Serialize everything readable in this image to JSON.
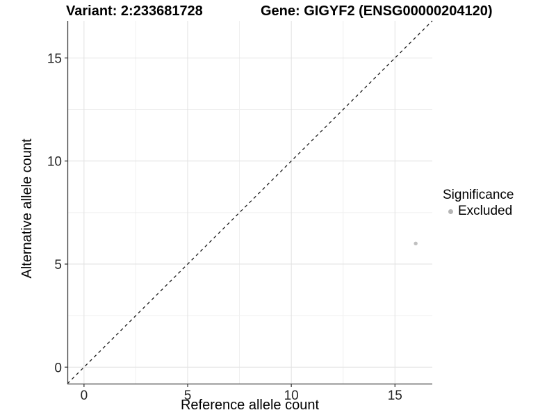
{
  "titles": {
    "left": "Variant: 2:233681728",
    "right": "Gene: GIGYF2 (ENSG00000204120)"
  },
  "legend": {
    "title": "Significance",
    "items": [
      {
        "label": "Excluded",
        "color": "#b5b5b5"
      }
    ]
  },
  "chart_data": {
    "type": "scatter",
    "title": "Variant: 2:233681728 / Gene: GIGYF2 (ENSG00000204120)",
    "xlabel": "Reference allele count",
    "ylabel": "Alternative allele count",
    "xlim": [
      -0.8,
      16.8
    ],
    "ylim": [
      -0.8,
      16.8
    ],
    "x_major_ticks": [
      0,
      5,
      10,
      15
    ],
    "y_major_ticks": [
      0,
      5,
      10,
      15
    ],
    "x_minor_ticks": [
      2.5,
      7.5,
      12.5
    ],
    "y_minor_ticks": [
      2.5,
      7.5,
      12.5
    ],
    "grid": "major+minor",
    "legend_position": "right",
    "reference_line": {
      "type": "identity y=x",
      "style": "dashed",
      "color": "#1a1a1a"
    },
    "series": [
      {
        "name": "Excluded",
        "color": "#c0c0c0",
        "points": [
          [
            16,
            6
          ]
        ]
      }
    ],
    "style": {
      "grid_major_color": "#e3e3e3",
      "grid_minor_color": "#efefef",
      "axis_line_color": "#3c3c3c",
      "tick_label_color": "#262626",
      "point_radius": 2.7
    }
  }
}
